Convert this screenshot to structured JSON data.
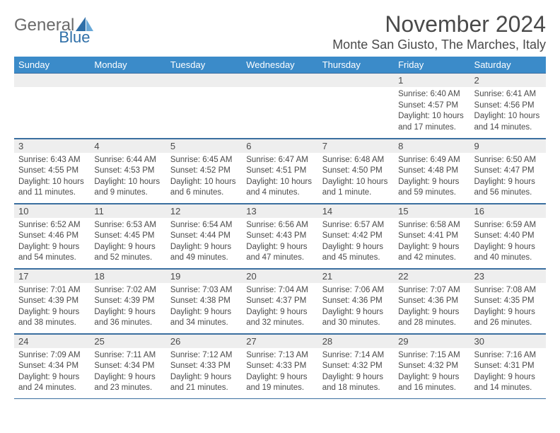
{
  "brand": {
    "text1": "General",
    "text2": "Blue"
  },
  "header": {
    "month_title": "November 2024",
    "location": "Monte San Giusto, The Marches, Italy"
  },
  "colors": {
    "header_bg": "#3b8bc9",
    "header_fg": "#ffffff",
    "daynum_bg": "#eeeeee",
    "text": "#4a4a4a",
    "row_border": "#3b6fa0",
    "logo_blue": "#2f6fa8",
    "logo_blue_light": "#6aa9d8",
    "bg": "#ffffff"
  },
  "weekdays": [
    "Sunday",
    "Monday",
    "Tuesday",
    "Wednesday",
    "Thursday",
    "Friday",
    "Saturday"
  ],
  "weeks": [
    [
      null,
      null,
      null,
      null,
      null,
      {
        "n": "1",
        "sr": "6:40 AM",
        "ss": "4:57 PM",
        "dl": "10 hours and 17 minutes."
      },
      {
        "n": "2",
        "sr": "6:41 AM",
        "ss": "4:56 PM",
        "dl": "10 hours and 14 minutes."
      }
    ],
    [
      {
        "n": "3",
        "sr": "6:43 AM",
        "ss": "4:55 PM",
        "dl": "10 hours and 11 minutes."
      },
      {
        "n": "4",
        "sr": "6:44 AM",
        "ss": "4:53 PM",
        "dl": "10 hours and 9 minutes."
      },
      {
        "n": "5",
        "sr": "6:45 AM",
        "ss": "4:52 PM",
        "dl": "10 hours and 6 minutes."
      },
      {
        "n": "6",
        "sr": "6:47 AM",
        "ss": "4:51 PM",
        "dl": "10 hours and 4 minutes."
      },
      {
        "n": "7",
        "sr": "6:48 AM",
        "ss": "4:50 PM",
        "dl": "10 hours and 1 minute."
      },
      {
        "n": "8",
        "sr": "6:49 AM",
        "ss": "4:48 PM",
        "dl": "9 hours and 59 minutes."
      },
      {
        "n": "9",
        "sr": "6:50 AM",
        "ss": "4:47 PM",
        "dl": "9 hours and 56 minutes."
      }
    ],
    [
      {
        "n": "10",
        "sr": "6:52 AM",
        "ss": "4:46 PM",
        "dl": "9 hours and 54 minutes."
      },
      {
        "n": "11",
        "sr": "6:53 AM",
        "ss": "4:45 PM",
        "dl": "9 hours and 52 minutes."
      },
      {
        "n": "12",
        "sr": "6:54 AM",
        "ss": "4:44 PM",
        "dl": "9 hours and 49 minutes."
      },
      {
        "n": "13",
        "sr": "6:56 AM",
        "ss": "4:43 PM",
        "dl": "9 hours and 47 minutes."
      },
      {
        "n": "14",
        "sr": "6:57 AM",
        "ss": "4:42 PM",
        "dl": "9 hours and 45 minutes."
      },
      {
        "n": "15",
        "sr": "6:58 AM",
        "ss": "4:41 PM",
        "dl": "9 hours and 42 minutes."
      },
      {
        "n": "16",
        "sr": "6:59 AM",
        "ss": "4:40 PM",
        "dl": "9 hours and 40 minutes."
      }
    ],
    [
      {
        "n": "17",
        "sr": "7:01 AM",
        "ss": "4:39 PM",
        "dl": "9 hours and 38 minutes."
      },
      {
        "n": "18",
        "sr": "7:02 AM",
        "ss": "4:39 PM",
        "dl": "9 hours and 36 minutes."
      },
      {
        "n": "19",
        "sr": "7:03 AM",
        "ss": "4:38 PM",
        "dl": "9 hours and 34 minutes."
      },
      {
        "n": "20",
        "sr": "7:04 AM",
        "ss": "4:37 PM",
        "dl": "9 hours and 32 minutes."
      },
      {
        "n": "21",
        "sr": "7:06 AM",
        "ss": "4:36 PM",
        "dl": "9 hours and 30 minutes."
      },
      {
        "n": "22",
        "sr": "7:07 AM",
        "ss": "4:36 PM",
        "dl": "9 hours and 28 minutes."
      },
      {
        "n": "23",
        "sr": "7:08 AM",
        "ss": "4:35 PM",
        "dl": "9 hours and 26 minutes."
      }
    ],
    [
      {
        "n": "24",
        "sr": "7:09 AM",
        "ss": "4:34 PM",
        "dl": "9 hours and 24 minutes."
      },
      {
        "n": "25",
        "sr": "7:11 AM",
        "ss": "4:34 PM",
        "dl": "9 hours and 23 minutes."
      },
      {
        "n": "26",
        "sr": "7:12 AM",
        "ss": "4:33 PM",
        "dl": "9 hours and 21 minutes."
      },
      {
        "n": "27",
        "sr": "7:13 AM",
        "ss": "4:33 PM",
        "dl": "9 hours and 19 minutes."
      },
      {
        "n": "28",
        "sr": "7:14 AM",
        "ss": "4:32 PM",
        "dl": "9 hours and 18 minutes."
      },
      {
        "n": "29",
        "sr": "7:15 AM",
        "ss": "4:32 PM",
        "dl": "9 hours and 16 minutes."
      },
      {
        "n": "30",
        "sr": "7:16 AM",
        "ss": "4:31 PM",
        "dl": "9 hours and 14 minutes."
      }
    ]
  ],
  "labels": {
    "sunrise": "Sunrise:",
    "sunset": "Sunset:",
    "daylight": "Daylight:"
  }
}
